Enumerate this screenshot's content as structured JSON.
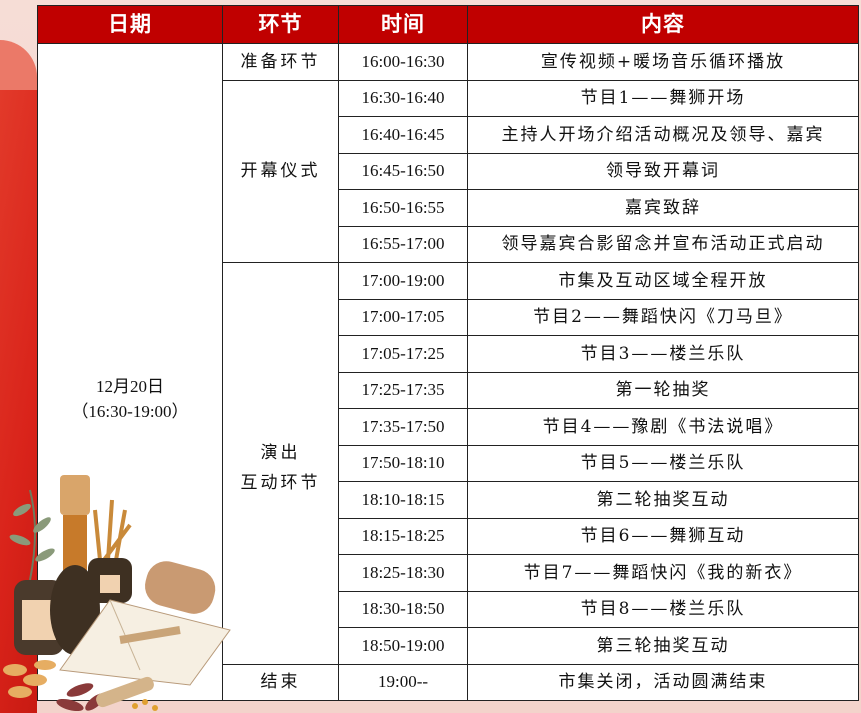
{
  "header": {
    "date": "日期",
    "segment": "环节",
    "time": "时间",
    "content": "内容"
  },
  "date": {
    "line1": "12月20日",
    "line2": "（16:30-19:00）"
  },
  "segments": [
    {
      "label": "准备环节",
      "rows": 1
    },
    {
      "label": "开幕仪式",
      "rows": 5
    },
    {
      "label": "演出\n互动环节",
      "rows": 11
    },
    {
      "label": "结束",
      "rows": 1
    }
  ],
  "rows": [
    {
      "time": "16:00-16:30",
      "content": "宣传视频+暖场音乐循环播放"
    },
    {
      "time": "16:30-16:40",
      "content": "节目1——舞狮开场"
    },
    {
      "time": "16:40-16:45",
      "content": "主持人开场介绍活动概况及领导、嘉宾"
    },
    {
      "time": "16:45-16:50",
      "content": "领导致开幕词"
    },
    {
      "time": "16:50-16:55",
      "content": "嘉宾致辞"
    },
    {
      "time": "16:55-17:00",
      "content": "领导嘉宾合影留念并宣布活动正式启动"
    },
    {
      "time": "17:00-19:00",
      "content": "市集及互动区域全程开放"
    },
    {
      "time": "17:00-17:05",
      "content": "节目2——舞蹈快闪《刀马旦》"
    },
    {
      "time": "17:05-17:25",
      "content": "节目3——楼兰乐队"
    },
    {
      "time": "17:25-17:35",
      "content": "第一轮抽奖"
    },
    {
      "time": "17:35-17:50",
      "content": "节目4——豫剧《书法说唱》"
    },
    {
      "time": "17:50-18:10",
      "content": "节目5——楼兰乐队"
    },
    {
      "time": "18:10-18:15",
      "content": "第二轮抽奖互动"
    },
    {
      "time": "18:15-18:25",
      "content": "节目6——舞狮互动"
    },
    {
      "time": "18:25-18:30",
      "content": "节目7——舞蹈快闪《我的新衣》"
    },
    {
      "time": "18:30-18:50",
      "content": "节目8——楼兰乐队"
    },
    {
      "time": "18:50-19:00",
      "content": "第三轮抽奖互动"
    },
    {
      "time": "19:00--",
      "content": "市集关闭，活动圆满结束"
    }
  ],
  "colors": {
    "header_bg": "#c00000",
    "header_text": "#ffffff",
    "border": "#222222",
    "background_red": "#d9231a"
  }
}
